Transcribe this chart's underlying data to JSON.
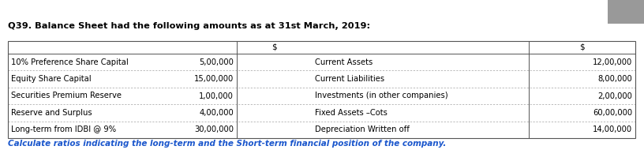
{
  "title": "Q39. Balance Sheet had the following amounts as at 31st March, 2019:",
  "left_labels": [
    "10% Preference Share Capital",
    "Equity Share Capital",
    "Securities Premium Reserve",
    "Reserve and Surplus",
    "Long-term from IDBI @ 9%"
  ],
  "left_values": [
    "5,00,000",
    "15,00,000",
    "1,00,000",
    "4,00,000",
    "30,00,000"
  ],
  "right_labels": [
    "Current Assets",
    "Current Liabilities",
    "Investments (in other companies)",
    "Fixed Assets –Cots",
    "Depreciation Written off"
  ],
  "right_values": [
    "12,00,000",
    "8,00,000",
    "2,00,000",
    "60,00,000",
    "14,00,000"
  ],
  "footer": "Calculate ratios indicating the long-term and the Short-term financial position of the company.",
  "bg_color": "#ffffff",
  "title_color": "#000000",
  "footer_color": "#1a56cc",
  "border_color": "#555555",
  "text_color": "#000000",
  "gray_top_right": "#aaaaaa"
}
